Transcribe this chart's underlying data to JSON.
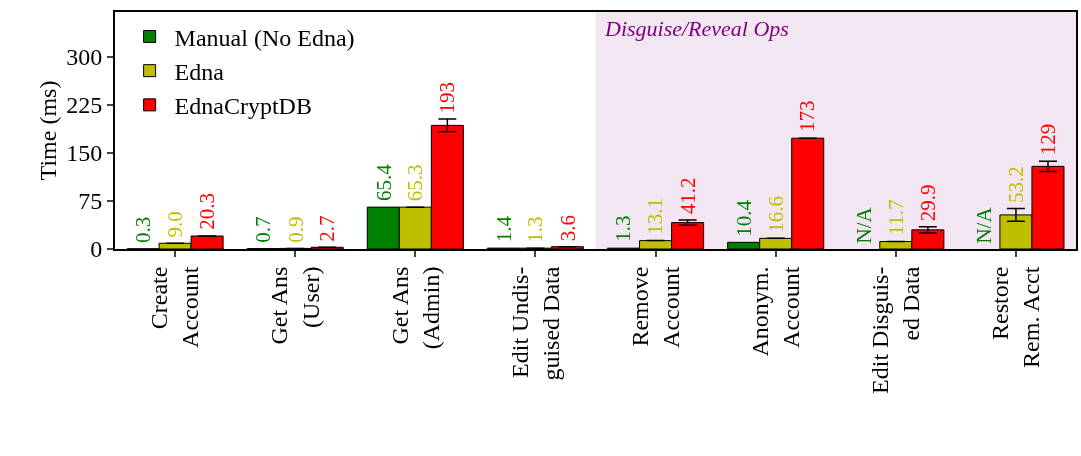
{
  "chart_data": {
    "type": "bar",
    "ylabel": "Time (ms)",
    "categories": [
      "Create\nAccount",
      "Get Ans\n(User)",
      "Get Ans\n(Admin)",
      "Edit Undis-\nguised Data",
      "Remove\nAccount",
      "Anonym.\nAccount",
      "Edit Disguis-\ned Data",
      "Restore\nRem. Acct"
    ],
    "series": [
      {
        "name": "Manual (No Edna)",
        "color": "#008000",
        "values": [
          0.3,
          0.7,
          65.4,
          1.4,
          1.3,
          10.4,
          null,
          null
        ],
        "value_labels": [
          "0.3",
          "0.7",
          "65.4",
          "1.4",
          "1.3",
          "10.4",
          "N/A",
          "N/A"
        ]
      },
      {
        "name": "Edna",
        "color": "#bfbf00",
        "values": [
          9.0,
          0.9,
          65.3,
          1.3,
          13.1,
          16.6,
          11.7,
          53.2
        ],
        "value_labels": [
          "9.0",
          "0.9",
          "65.3",
          "1.3",
          "13.1",
          "16.6",
          "11.7",
          "53.2"
        ],
        "errors": [
          null,
          null,
          null,
          null,
          null,
          null,
          null,
          10
        ]
      },
      {
        "name": "EdnaCryptDB",
        "color": "#ff0000",
        "values": [
          20.3,
          2.7,
          193,
          3.6,
          41.2,
          173,
          29.9,
          129
        ],
        "value_labels": [
          "20.3",
          "2.7",
          "193",
          "3.6",
          "41.2",
          "173",
          "29.9",
          "129"
        ],
        "errors": [
          null,
          null,
          10,
          null,
          4,
          null,
          5,
          8
        ]
      }
    ],
    "ylim": [
      0,
      370
    ],
    "yticks": [
      0,
      75,
      150,
      225,
      300
    ],
    "grid": false,
    "legend": "top left",
    "bands": [
      {
        "axis": "x",
        "from": "Remove\nAccount",
        "to": "Restore\nRem. Acct",
        "label": "Disguise/Reveal Ops",
        "color": "#f2e6f2"
      }
    ]
  }
}
